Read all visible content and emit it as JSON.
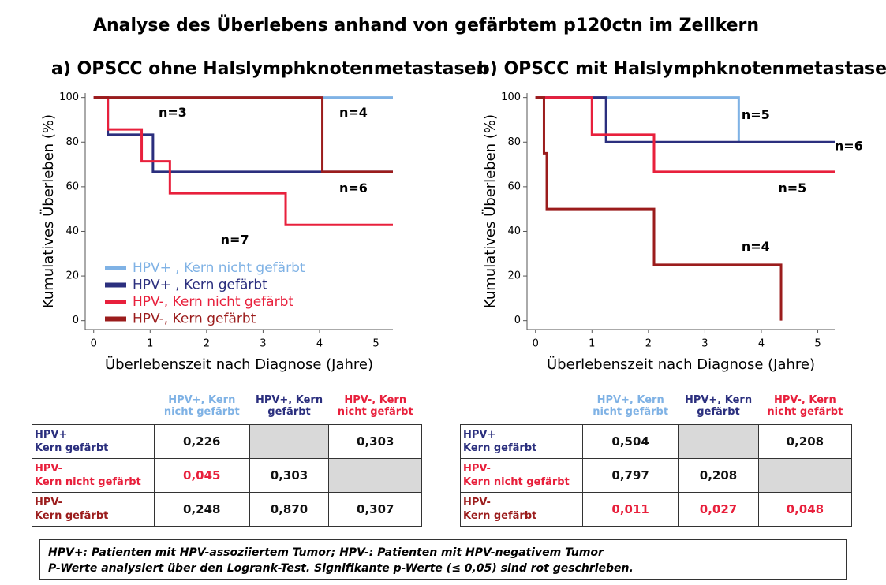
{
  "title": "Analyse des Überlebens anhand von gefärbtem p120ctn im Zellkern",
  "chart_data": [
    {
      "type": "line",
      "step": true,
      "title": "a) OPSCC ohne Halslymphknotenmetastasen",
      "x_label": "Überlebenszeit nach Diagnose (Jahre)",
      "y_label": "Kumulatives Überleben (%)",
      "xlim": [
        -0.15,
        5.3
      ],
      "xticks": [
        0,
        1,
        2,
        3,
        4,
        5
      ],
      "ylim": [
        -4,
        102
      ],
      "yticks": [
        0,
        20,
        40,
        60,
        80,
        100
      ],
      "legend": "lower left",
      "series": [
        {
          "name": "HPV+ , Kern nicht gefärbt",
          "color": "#7fb2e5",
          "x": [
            0,
            5.3
          ],
          "values": [
            100,
            100
          ]
        },
        {
          "name": "HPV+ , Kern gefärbt",
          "color": "#2b2f7e",
          "x": [
            0,
            0.25,
            1.05,
            5.3
          ],
          "values": [
            100,
            83.3,
            66.7,
            66.7
          ]
        },
        {
          "name": "HPV-, Kern nicht gefärbt",
          "color": "#e8203c",
          "x": [
            0,
            0.25,
            0.85,
            1.35,
            3.4,
            5.3
          ],
          "values": [
            100,
            85.7,
            71.4,
            57.1,
            42.9,
            42.9
          ]
        },
        {
          "name": "HPV-, Kern gefärbt",
          "color": "#9b1c1c",
          "x": [
            0,
            4.05,
            5.3
          ],
          "values": [
            100,
            66.7,
            66.7
          ]
        }
      ],
      "annotations": [
        "n=3",
        "n=4",
        "n=6",
        "n=7"
      ]
    },
    {
      "type": "line",
      "step": true,
      "title": "b) OPSCC mit Halslymphknotenmetastasen",
      "x_label": "Überlebenszeit nach Diagnose (Jahre)",
      "y_label": "Kumulatives Überleben (%)",
      "xlim": [
        -0.15,
        5.3
      ],
      "xticks": [
        0,
        1,
        2,
        3,
        4,
        5
      ],
      "ylim": [
        -4,
        102
      ],
      "yticks": [
        0,
        20,
        40,
        60,
        80,
        100
      ],
      "series": [
        {
          "color": "#7fb2e5",
          "x": [
            0,
            3.6
          ],
          "values": [
            100,
            80
          ]
        },
        {
          "color": "#2b2f7e",
          "x": [
            0,
            1.25,
            5.3
          ],
          "values": [
            100,
            80,
            80
          ]
        },
        {
          "color": "#e8203c",
          "x": [
            0,
            1.0,
            2.1,
            5.3
          ],
          "values": [
            100,
            83.3,
            66.7,
            66.7
          ]
        },
        {
          "color": "#9b1c1c",
          "x": [
            0,
            0.15,
            0.2,
            2.1,
            4.35
          ],
          "values": [
            100,
            75,
            50,
            25,
            0
          ]
        }
      ],
      "annotations": [
        "n=5",
        "n=6",
        "n=5",
        "n=4"
      ]
    }
  ],
  "tables": [
    {
      "columns": [
        "HPV+, Kern nicht gefärbt",
        "HPV+, Kern gefärbt",
        "HPV-, Kern nicht gefärbt"
      ],
      "rows": [
        {
          "label": "HPV+\nKern gefärbt",
          "cells": [
            "0,226",
            null,
            "0,303"
          ]
        },
        {
          "label": "HPV-\nKern nicht gefärbt",
          "cells": [
            "0,045",
            "0,303",
            null
          ]
        },
        {
          "label": "HPV-\nKern gefärbt",
          "cells": [
            "0,248",
            "0,870",
            "0,307"
          ]
        }
      ],
      "red_cells": [
        [
          1,
          0
        ]
      ]
    },
    {
      "columns": [
        "HPV+, Kern nicht gefärbt",
        "HPV+, Kern gefärbt",
        "HPV-, Kern nicht gefärbt"
      ],
      "rows": [
        {
          "label": "HPV+\nKern gefärbt",
          "cells": [
            "0,504",
            null,
            "0,208"
          ]
        },
        {
          "label": "HPV-\nKern nicht gefärbt",
          "cells": [
            "0,797",
            "0,208",
            null
          ]
        },
        {
          "label": "HPV-\nKern gefärbt",
          "cells": [
            "0,011",
            "0,027",
            "0,048"
          ]
        }
      ],
      "red_cells": [
        [
          2,
          0
        ],
        [
          2,
          1
        ],
        [
          2,
          2
        ]
      ]
    }
  ],
  "footnote": [
    "HPV+: Patienten mit HPV-assoziiertem Tumor;  HPV-: Patienten mit HPV-negativem Tumor",
    "P-Werte analysiert über den Logrank-Test. Signifikante p-Werte (≤ 0,05) sind rot geschrieben."
  ]
}
